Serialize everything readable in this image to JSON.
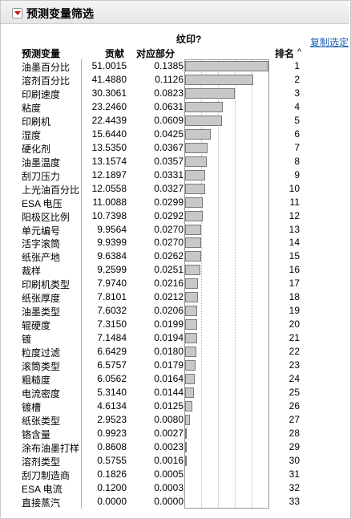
{
  "panel": {
    "title": "预测变量筛选",
    "chart_title": "纹印?",
    "copy_selection": "复制选定",
    "columns": {
      "name": "预测变量",
      "contribution": "贡献",
      "portion": "对应部分",
      "rank": "排名"
    }
  },
  "colors": {
    "bar_fill": "#c8c8c8",
    "bar_border": "#7a7a7a",
    "link": "#1a5fb4",
    "collapse_arrow": "#d01010"
  },
  "icons": {
    "collapse": "collapse-triangle-icon",
    "sort": "sort-ascending-icon"
  },
  "rows": [
    {
      "name": "油墨百分比",
      "contribution": "51.0015",
      "portion": "0.1385",
      "rank": "1"
    },
    {
      "name": "溶剂百分比",
      "contribution": "41.4880",
      "portion": "0.1126",
      "rank": "2"
    },
    {
      "name": "印刷速度",
      "contribution": "30.3061",
      "portion": "0.0823",
      "rank": "3"
    },
    {
      "name": "粘度",
      "contribution": "23.2460",
      "portion": "0.0631",
      "rank": "4"
    },
    {
      "name": "印刷机",
      "contribution": "22.4439",
      "portion": "0.0609",
      "rank": "5"
    },
    {
      "name": "湿度",
      "contribution": "15.6440",
      "portion": "0.0425",
      "rank": "6"
    },
    {
      "name": "硬化剂",
      "contribution": "13.5350",
      "portion": "0.0367",
      "rank": "7"
    },
    {
      "name": "油墨温度",
      "contribution": "13.1574",
      "portion": "0.0357",
      "rank": "8"
    },
    {
      "name": "刮刀压力",
      "contribution": "12.1897",
      "portion": "0.0331",
      "rank": "9"
    },
    {
      "name": "上光油百分比",
      "contribution": "12.0558",
      "portion": "0.0327",
      "rank": "10"
    },
    {
      "name": "ESA 电压",
      "contribution": "11.0088",
      "portion": "0.0299",
      "rank": "11"
    },
    {
      "name": "阳极区比例",
      "contribution": "10.7398",
      "portion": "0.0292",
      "rank": "12"
    },
    {
      "name": "单元编号",
      "contribution": "9.9564",
      "portion": "0.0270",
      "rank": "13"
    },
    {
      "name": "活字滚筒",
      "contribution": "9.9399",
      "portion": "0.0270",
      "rank": "14"
    },
    {
      "name": "纸张产地",
      "contribution": "9.6384",
      "portion": "0.0262",
      "rank": "15"
    },
    {
      "name": "裁样",
      "contribution": "9.2599",
      "portion": "0.0251",
      "rank": "16"
    },
    {
      "name": "印刷机类型",
      "contribution": "7.9740",
      "portion": "0.0216",
      "rank": "17"
    },
    {
      "name": "纸张厚度",
      "contribution": "7.8101",
      "portion": "0.0212",
      "rank": "18"
    },
    {
      "name": "油墨类型",
      "contribution": "7.6032",
      "portion": "0.0206",
      "rank": "19"
    },
    {
      "name": "辊硬度",
      "contribution": "7.3150",
      "portion": "0.0199",
      "rank": "20"
    },
    {
      "name": "镀",
      "contribution": "7.1484",
      "portion": "0.0194",
      "rank": "21"
    },
    {
      "name": "粒度过滤",
      "contribution": "6.6429",
      "portion": "0.0180",
      "rank": "22"
    },
    {
      "name": "滚筒类型",
      "contribution": "6.5757",
      "portion": "0.0179",
      "rank": "23"
    },
    {
      "name": "粗糙度",
      "contribution": "6.0562",
      "portion": "0.0164",
      "rank": "24"
    },
    {
      "name": "电流密度",
      "contribution": "5.3140",
      "portion": "0.0144",
      "rank": "25"
    },
    {
      "name": "镀槽",
      "contribution": "4.6134",
      "portion": "0.0125",
      "rank": "26"
    },
    {
      "name": "纸张类型",
      "contribution": "2.9523",
      "portion": "0.0080",
      "rank": "27"
    },
    {
      "name": "铬含量",
      "contribution": "0.9923",
      "portion": "0.0027",
      "rank": "28"
    },
    {
      "name": "涂布油墨打样",
      "contribution": "0.8608",
      "portion": "0.0023",
      "rank": "29"
    },
    {
      "name": "溶剂类型",
      "contribution": "0.5755",
      "portion": "0.0016",
      "rank": "30"
    },
    {
      "name": "刮刀制造商",
      "contribution": "0.1826",
      "portion": "0.0005",
      "rank": "31"
    },
    {
      "name": "ESA 电流",
      "contribution": "0.1200",
      "portion": "0.0003",
      "rank": "32"
    },
    {
      "name": "直接蒸汽",
      "contribution": "0.0000",
      "portion": "0.0000",
      "rank": "33"
    }
  ]
}
